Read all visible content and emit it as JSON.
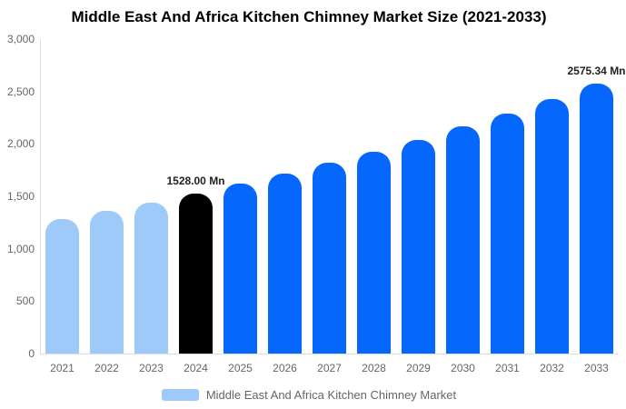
{
  "title": "Middle East And Africa Kitchen Chimney Market Size (2021-2033)",
  "chart_data": {
    "type": "bar",
    "title": "Middle East And Africa Kitchen Chimney Market Size (2021-2033)",
    "xlabel": "",
    "ylabel": "",
    "unit": "Mn",
    "categories": [
      "2021",
      "2022",
      "2023",
      "2024",
      "2025",
      "2026",
      "2027",
      "2028",
      "2029",
      "2030",
      "2031",
      "2032",
      "2033"
    ],
    "values": [
      1283.9,
      1360.5,
      1441.7,
      1528.0,
      1619.2,
      1715.9,
      1818.3,
      1926.8,
      2041.9,
      2163.7,
      2292.9,
      2429.8,
      2575.34
    ],
    "bar_colors": [
      "#9ecaf9",
      "#9ecaf9",
      "#9ecaf9",
      "#000000",
      "#0667fd",
      "#0667fd",
      "#0667fd",
      "#0667fd",
      "#0667fd",
      "#0667fd",
      "#0667fd",
      "#0667fd",
      "#0667fd"
    ],
    "value_labels": [
      {
        "index": 3,
        "text": "1528.00 Mn"
      },
      {
        "index": 12,
        "text": "2575.34 Mn"
      }
    ],
    "ylim": [
      0,
      3000
    ],
    "ytick_values": [
      0,
      500,
      1000,
      1500,
      2000,
      2500,
      3000
    ],
    "ytick_labels": [
      "0",
      "500",
      "1,000",
      "1,500",
      "2,000",
      "2,500",
      "3,000"
    ],
    "grid": false,
    "legend": {
      "position": "bottom",
      "entries": [
        {
          "label": "Middle East And Africa Kitchen Chimney Market",
          "color": "#9ecaf9"
        }
      ]
    }
  },
  "colors": {
    "historical_bar": "#9ecaf9",
    "highlight_bar": "#000000",
    "forecast_bar": "#0667fd",
    "axis_line": "#dddddd",
    "axis_text": "#666666",
    "title_text": "#000000",
    "data_label_text": "#222222"
  }
}
